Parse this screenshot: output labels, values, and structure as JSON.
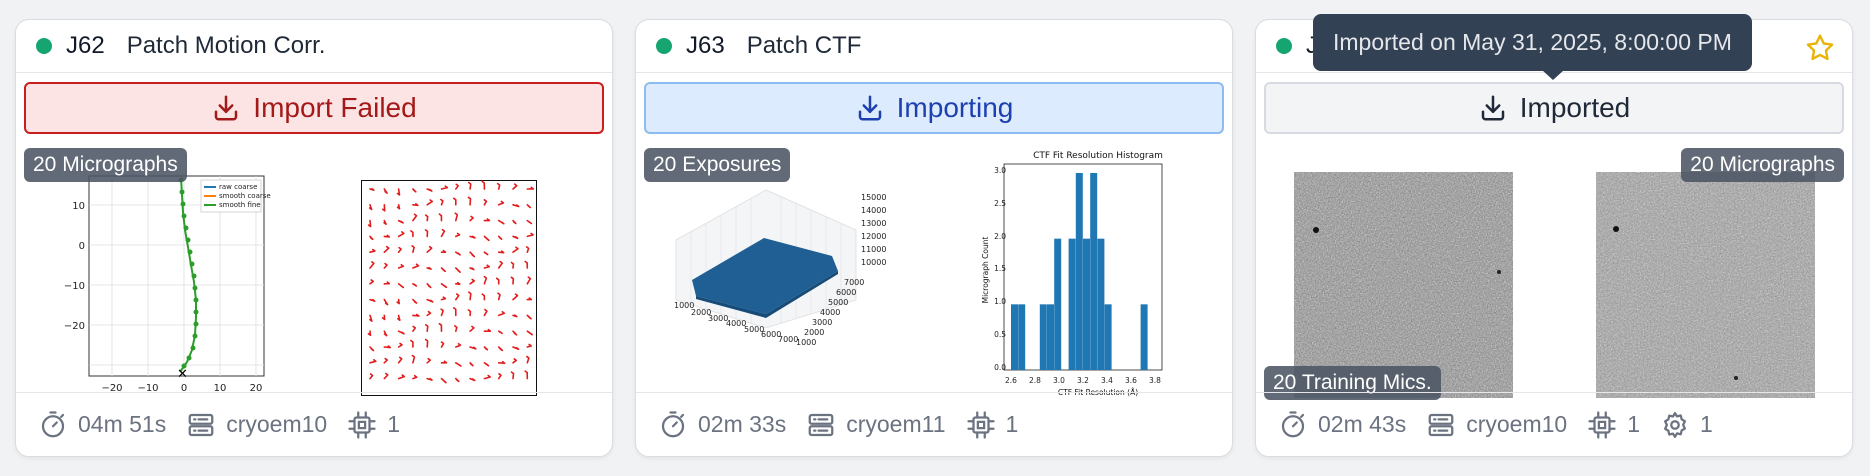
{
  "cards": [
    {
      "job_id": "J62",
      "title": "Patch Motion Corr.",
      "import_status": "Import Failed",
      "badges": [
        "20 Micrographs"
      ],
      "duration": "04m 51s",
      "server": "cryoem10",
      "gpus": "1",
      "trajectory_legend": [
        "raw coarse",
        "smooth coarse",
        "smooth fine"
      ],
      "trajectory_yticks": [
        "10",
        "0",
        "−10",
        "−20"
      ],
      "trajectory_xticks": [
        "−20",
        "−10",
        "0",
        "10",
        "20"
      ]
    },
    {
      "job_id": "J63",
      "title": "Patch CTF",
      "import_status": "Importing",
      "badges": [
        "20 Exposures"
      ],
      "duration": "02m 33s",
      "server": "cryoem11",
      "gpus": "1",
      "surface_zticks": [
        "15000",
        "14000",
        "13000",
        "12000",
        "11000",
        "10000"
      ],
      "surface_xticks": [
        "1000",
        "2000",
        "3000",
        "4000",
        "5000",
        "6000",
        "7000"
      ],
      "surface_yticks": [
        "7000",
        "6000",
        "5000",
        "4000",
        "3000",
        "2000",
        "1000"
      ],
      "histogram": {
        "title": "CTF Fit Resolution Histogram",
        "xlabel": "CTF Fit Resolution (Å)",
        "ylabel": "Micrograph Count",
        "xticks": [
          "2.6",
          "2.8",
          "3.0",
          "3.2",
          "3.4",
          "3.6",
          "3.8"
        ],
        "yticks": [
          "3.0",
          "2.5",
          "2.0",
          "1.5",
          "1.0",
          "0.5",
          "0.0"
        ]
      }
    },
    {
      "job_id": "J",
      "title": "",
      "import_status": "Imported",
      "badges": [
        "20 Micrographs",
        "20 Training Mics."
      ],
      "duration": "02m 43s",
      "server": "cryoem10",
      "gpus": "1",
      "params": "1"
    }
  ],
  "tooltip": "Imported on May 31, 2025, 8:00:00 PM",
  "chart_data": {
    "type": "bar",
    "title": "CTF Fit Resolution Histogram",
    "xlabel": "CTF Fit Resolution (Å)",
    "ylabel": "Micrograph Count",
    "bin_edges": [
      2.6,
      2.66,
      2.72,
      2.78,
      2.84,
      2.9,
      2.96,
      3.02,
      3.08,
      3.14,
      3.2,
      3.26,
      3.32,
      3.38,
      3.44,
      3.5,
      3.56,
      3.62,
      3.68,
      3.74,
      3.8
    ],
    "values": [
      1,
      1,
      0,
      0,
      1,
      1,
      2,
      0,
      2,
      3,
      2,
      3,
      2,
      1,
      0,
      0,
      0,
      0,
      1,
      0
    ],
    "xlim": [
      2.6,
      3.8
    ],
    "ylim": [
      0,
      3.2
    ],
    "colors": {
      "bar": "#1f77b4"
    }
  }
}
